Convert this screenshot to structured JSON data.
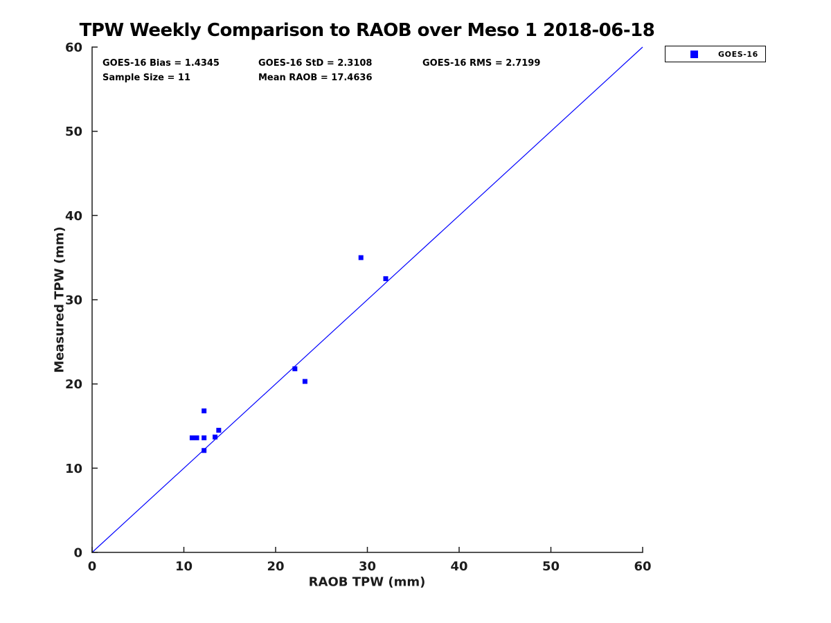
{
  "title": "TPW Weekly Comparison to RAOB over Meso 1 2018-06-18",
  "annotations": {
    "bias": "GOES-16 Bias = 1.4345",
    "std": "GOES-16 StD = 2.3108",
    "rms": "GOES-16 RMS = 2.7199",
    "sample_size": "Sample Size = 11",
    "mean_raob": "Mean RAOB = 17.4636"
  },
  "legend": {
    "label": "GOES-16",
    "swatch_color": "#0000ff",
    "position": "outside-top-right"
  },
  "chart_data": {
    "type": "scatter",
    "title": "TPW Weekly Comparison to RAOB over Meso 1 2018-06-18",
    "xlabel": "RAOB TPW (mm)",
    "ylabel": "Measured TPW (mm)",
    "xlim": [
      0,
      60
    ],
    "ylim": [
      0,
      60
    ],
    "xticks": [
      0,
      10,
      20,
      30,
      40,
      50,
      60
    ],
    "yticks": [
      0,
      10,
      20,
      30,
      40,
      50,
      60
    ],
    "grid": false,
    "axis_color": "#1c1c1c",
    "tick_label_color": "#1c1c1c",
    "series": [
      {
        "name": "GOES-16",
        "marker": "square",
        "color": "#0000ff",
        "points": [
          [
            10.9,
            13.6
          ],
          [
            11.4,
            13.6
          ],
          [
            12.2,
            16.8
          ],
          [
            12.2,
            13.6
          ],
          [
            12.2,
            12.1
          ],
          [
            13.4,
            13.7
          ],
          [
            13.8,
            14.5
          ],
          [
            22.1,
            21.8
          ],
          [
            23.2,
            20.3
          ],
          [
            29.3,
            35.0
          ],
          [
            32.0,
            32.5
          ]
        ]
      }
    ],
    "reference_line": {
      "from": [
        0,
        0
      ],
      "to": [
        60,
        60
      ],
      "color": "#0000ff"
    },
    "stats": {
      "bias": 1.4345,
      "std": 2.3108,
      "rms": 2.7199,
      "sample_size": 11,
      "mean_raob": 17.4636
    }
  }
}
